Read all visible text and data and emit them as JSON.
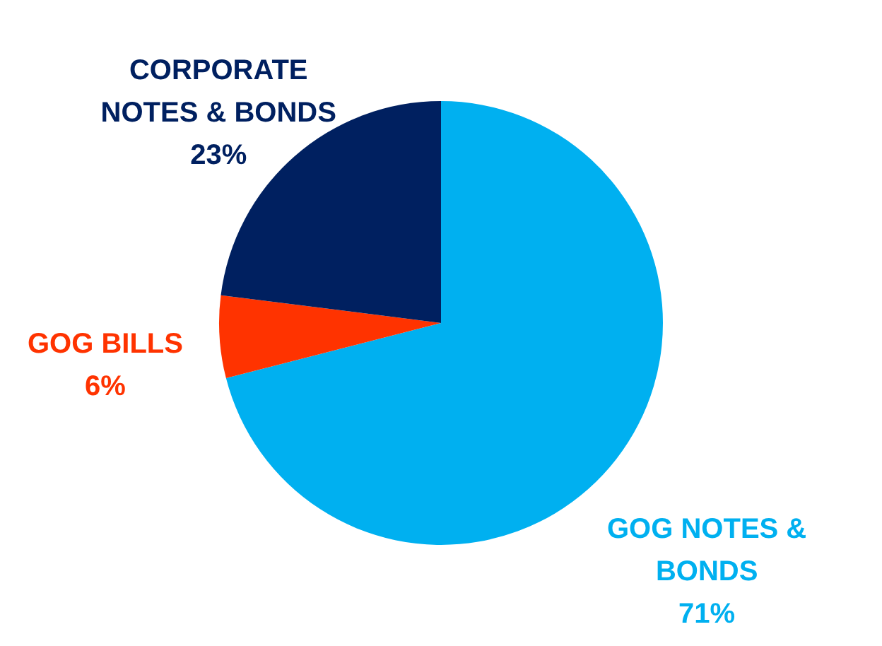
{
  "chart_data": {
    "type": "pie",
    "categories": [
      "GOG NOTES & BONDS",
      "GOG BILLS",
      "CORPORATE NOTES & BONDS"
    ],
    "values": [
      71,
      6,
      23
    ],
    "colors": [
      "#00b0f0",
      "#ff3300",
      "#002060"
    ],
    "value_labels": [
      "71%",
      "6%",
      "23%"
    ]
  }
}
